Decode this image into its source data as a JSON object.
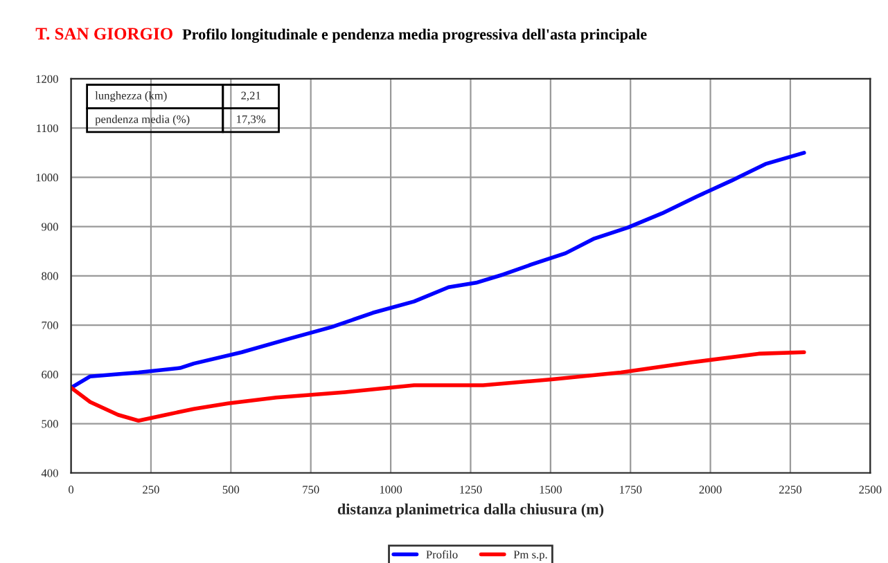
{
  "chart_data": {
    "type": "line",
    "title": "T. SAN GIORGIO",
    "subtitle": "Profilo longitudinale e pendenza media progressiva dell'asta principale",
    "xlabel": "distanza planimetrica dalla chiusura (m)",
    "annotations": [
      "lunghezza (km)",
      "2,21",
      "pendenza media (%)",
      "17,3%"
    ],
    "xlim": [
      0,
      2500
    ],
    "xticks": [
      0,
      250,
      500,
      750,
      1000,
      1250,
      1500,
      1750,
      2000,
      2250,
      2500
    ],
    "ylim": [
      400,
      1200
    ],
    "yticks": [
      400,
      500,
      600,
      700,
      800,
      900,
      1000,
      1100,
      1200
    ],
    "grid": true,
    "legend": "bottom",
    "marker": "none",
    "line_style": "solid",
    "series": [
      {
        "name": "Profilo",
        "color": "#0000ff",
        "x": [
          0,
          60,
          211,
          341,
          384,
          534,
          685,
          815,
          944,
          1073,
          1181,
          1267,
          1353,
          1440,
          1547,
          1634,
          1741,
          1849,
          1957,
          2065,
          2172,
          2293
        ],
        "values": [
          573,
          596,
          604,
          613,
          622,
          645,
          673,
          696,
          725,
          748,
          777,
          786,
          803,
          823,
          846,
          875,
          898,
          927,
          961,
          993,
          1027,
          1050
        ]
      },
      {
        "name": "Pm s.p.",
        "color": "#ff0000",
        "x": [
          0,
          60,
          147,
          211,
          297,
          384,
          491,
          642,
          858,
          1073,
          1289,
          1504,
          1720,
          1935,
          2151,
          2293
        ],
        "values": [
          573,
          544,
          518,
          506,
          518,
          530,
          541,
          553,
          564,
          578,
          578,
          590,
          604,
          624,
          642,
          645
        ]
      }
    ]
  }
}
